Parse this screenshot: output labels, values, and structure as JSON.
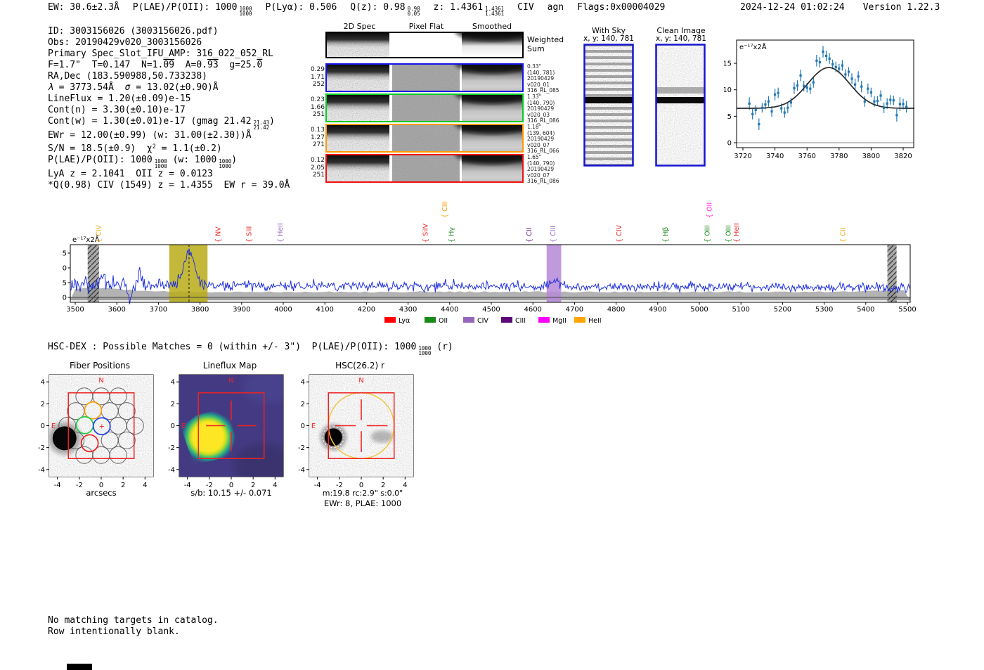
{
  "header": {
    "ew": "EW: 30.6±2.3Å",
    "plae_label": "P(LAE)/P(OII): 1000",
    "plae_sup": "1000",
    "plae_sub": "1000",
    "plya": "P(Lyα): 0.506",
    "qz_label": "Q(z): 0.98",
    "qz_sup": "0.98",
    "qz_sub": "0.05",
    "z_label": "z: 1.4361",
    "z_sup": "1.4361",
    "z_sub": "1.4361",
    "line_id": "CIV",
    "classification": "agn",
    "flags": "Flags:0x00004029",
    "datetime": "2024-12-24 01:02:24",
    "version": "Version 1.22.3"
  },
  "info": {
    "line_id": "ID: 3003156026 (3003156026.pdf)",
    "line_obs": "Obs: 20190429v020_3003156026",
    "line_primary": "Primary Spec_Slot_IFU_AMP: 316_022_052_RL",
    "line_fphot": {
      "s1": "F=1.7\"  T=0.147  N=1.",
      "o1": "09",
      "s2": "  A=0.",
      "o2": "93",
      "s3": "  g=25.",
      "o3": "0"
    },
    "line_radec": "RA,Dec (183.590988,50.733238)",
    "line_lambda": {
      "i1": "λ",
      "s1": " = 3773.54Å  ",
      "i2": "σ",
      "s2": " = 13.02(±0.90)Å"
    },
    "line_lineflux": "LineFlux = 1.20(±0.09)e-15",
    "line_contn": "Cont(n) = 3.30(±0.10)e-17",
    "line_contw": {
      "pre": "Cont(w) = 1.30(±0.01)e-17 (gmag 21.42",
      "sup": "21.43",
      "sub": "21.42",
      "post": ")"
    },
    "line_ewr": "EWr = 12.00(±0.99) (w: 31.00(±2.30))Å",
    "line_sn": {
      "pre": "S/N = 18.5(±0.9)  χ",
      "sup": "2",
      "post": " = 1.1(±0.2)"
    },
    "line_plae": {
      "pre": "P(LAE)/P(OII): 1000",
      "sup1": "1000",
      "sub1": "1000",
      "mid": " (w: 1000",
      "sup2": "1000",
      "sub2": "1000",
      "post": ")"
    },
    "line_z": "LyA z = 2.1041  OII z = 0.0123",
    "line_q": "*Q(0.98) CIV (1549) z = 1.4355  EW r = 39.0Å"
  },
  "spec2d": {
    "col_headers": [
      "2D Spec",
      "Pixel Flat",
      "Smoothed"
    ],
    "weighted_sum": "Weighted\nSum",
    "rows": [
      {
        "color": "#1414e6",
        "left": [
          "0.29",
          "1.71",
          "252"
        ],
        "right": [
          "0.33\"",
          "(140, 781)",
          "20190429",
          "v020_01",
          "316_RL_085"
        ]
      },
      {
        "color": "#00cc22",
        "left": [
          "0.23",
          "1.66",
          "251"
        ],
        "right": [
          "1.33\"",
          "(140, 790)",
          "20190429",
          "v020_03",
          "316_RL_086"
        ]
      },
      {
        "color": "#ff9900",
        "left": [
          "0.13",
          "1.27",
          "271"
        ],
        "right": [
          "1.18\"",
          "(139, 604)",
          "20190429",
          "v020_07",
          "316_RL_066"
        ]
      },
      {
        "color": "#ee1111",
        "left": [
          "0.12",
          "2.05",
          "251"
        ],
        "right": [
          "1.65\"",
          "(140, 790)",
          "20190429",
          "v020_07",
          "316_RL_086"
        ]
      }
    ]
  },
  "sky": {
    "with_sky_title": "With Sky",
    "with_sky_coords": "x, y: 140, 781",
    "clean_title": "Clean Image",
    "clean_coords": "x, y: 140, 781"
  },
  "hsc": {
    "pre": "HSC-DEX : Possible Matches = 0 (within +/- 3\")  P(LAE)/P(OII): 1000",
    "sup": "1000",
    "sub": "1000",
    "post": " (r)"
  },
  "cutouts": {
    "axis_ticks": [
      "-4",
      "-2",
      "0",
      "2",
      "4"
    ],
    "north_label": "N",
    "east_label": "E",
    "plus_marker": "+",
    "panels": [
      {
        "title": "Fiber Positions",
        "xlabel": "arcsecs"
      },
      {
        "title": "Lineflux Map",
        "caption": "s/b: 10.15 +/- 0.071"
      },
      {
        "title": "HSC(26.2) r",
        "caption": "m:19.8 rc:2.9\" s:0.0\"",
        "caption2": "EWr: 8, PLAE: 1000"
      }
    ]
  },
  "footer": {
    "line1": "No matching targets in catalog.",
    "line2": "Row intentionally blank."
  },
  "colors": {
    "marker_blue": "#1f77b4",
    "spectrum_blue": "#2233dd",
    "fit_black": "#2b2b2b",
    "olive_band": "#b9ab16",
    "purple_band": "#b688d8",
    "box_red": "#ee2222",
    "gold": "#f2c744"
  },
  "chart_data": [
    {
      "type": "scatter",
      "id": "line-fit-inset",
      "annotation": "e⁻¹⁷x2Å",
      "xlim": [
        3716,
        3826
      ],
      "ylim": [
        -1,
        19.4
      ],
      "xticks": [
        3720,
        3740,
        3760,
        3780,
        3800,
        3820
      ],
      "yticks": [
        0,
        5,
        10,
        15
      ],
      "x": [
        3724,
        3726,
        3728,
        3730,
        3732,
        3734,
        3736,
        3738,
        3740,
        3742,
        3744,
        3746,
        3748,
        3750,
        3752,
        3754,
        3756,
        3758,
        3760,
        3762,
        3764,
        3766,
        3768,
        3770,
        3772,
        3774,
        3776,
        3778,
        3780,
        3782,
        3784,
        3786,
        3788,
        3790,
        3792,
        3794,
        3796,
        3798,
        3800,
        3802,
        3804,
        3806,
        3808,
        3810,
        3812,
        3814,
        3816,
        3818,
        3820,
        3822
      ],
      "y": [
        7.4,
        5.4,
        6.2,
        3.5,
        6.6,
        7.2,
        7.8,
        5.9,
        9.1,
        9.4,
        6.5,
        5.7,
        6.6,
        7.6,
        10.3,
        10.8,
        12.7,
        10.7,
        10.4,
        10.2,
        11.4,
        15.5,
        15.2,
        17.2,
        16.4,
        15.9,
        14.8,
        14.3,
        14.0,
        14.6,
        12.9,
        13.4,
        12.1,
        11.0,
        12.5,
        10.6,
        7.8,
        10.2,
        9.5,
        7.8,
        7.9,
        8.9,
        6.6,
        7.4,
        8.1,
        8.0,
        5.2,
        7.3,
        7.3,
        6.8
      ],
      "yerr": [
        1.2,
        1.0,
        0.9,
        1.1,
        0.9,
        0.9,
        1.0,
        1.0,
        1.1,
        1.0,
        0.9,
        1.0,
        1.0,
        0.9,
        1.1,
        1.0,
        1.1,
        1.0,
        0.9,
        1.0,
        1.0,
        1.1,
        1.0,
        1.1,
        1.0,
        1.0,
        0.9,
        1.0,
        0.9,
        1.0,
        1.0,
        0.9,
        1.0,
        1.1,
        1.0,
        1.1,
        1.0,
        1.0,
        0.9,
        1.0,
        0.9,
        1.0,
        1.0,
        1.0,
        0.9,
        0.9,
        1.2,
        1.3,
        1.0,
        1.1
      ],
      "fit": {
        "shape": "gaussian",
        "mu": 3773.54,
        "sigma": 13.02,
        "peak": 14.2,
        "baseline": 6.5
      },
      "point_color": "#1f77b4",
      "fit_color": "#2b2b2b"
    },
    {
      "type": "line",
      "id": "full-spectrum",
      "annotation": "e⁻¹⁷x2Å",
      "xlim": [
        3488,
        5508
      ],
      "ylim": [
        -2.7,
        17.9
      ],
      "xticks": [
        3500,
        3600,
        3700,
        3800,
        3900,
        4000,
        4100,
        4200,
        4300,
        4400,
        4500,
        4600,
        4700,
        4800,
        4900,
        5000,
        5100,
        5200,
        5300,
        5400,
        5500
      ],
      "yticks": [
        0,
        5,
        10,
        15
      ],
      "line_color": "#2233dd",
      "emission_peak": {
        "mu": 3773.54,
        "sigma": 13.02,
        "amplitude": 11.2
      },
      "secondary_peak": {
        "mu": 4649,
        "sigma": 12,
        "amplitude": 1.8
      },
      "continuum": {
        "start": 4.35,
        "end": 3.25
      },
      "noise_sigma_blue_end": 1.45,
      "noise_sigma_red_end": 0.78,
      "error_band_level": 1.9,
      "highlight_bands": [
        {
          "style": "hatched",
          "x0": 3530,
          "x1": 3557
        },
        {
          "style": "solid",
          "color": "#b9ab16",
          "x0": 3726,
          "x1": 3818,
          "marker": 3773.54
        },
        {
          "style": "solid",
          "color": "#b688d8",
          "x0": 4633,
          "x1": 4668
        },
        {
          "style": "hatched",
          "x0": 5452,
          "x1": 5474
        }
      ],
      "line_labels": [
        {
          "label": "CIV",
          "wave": 3556,
          "row": 1,
          "color": "#f5a40a"
        },
        {
          "label": "NV",
          "wave": 3843,
          "row": 1,
          "color": "#e82222"
        },
        {
          "label": "SiII",
          "wave": 3917,
          "row": 1,
          "color": "#e82222"
        },
        {
          "label": "HeII",
          "wave": 3992,
          "row": 1,
          "color": "#9467bd"
        },
        {
          "label": "SiIV",
          "wave": 4341,
          "row": 1,
          "color": "#e82222"
        },
        {
          "label": "CIII",
          "wave": 4388,
          "row": 2,
          "color": "#f5a40a"
        },
        {
          "label": "Hγ",
          "wave": 4404,
          "row": 1,
          "color": "#1e8b1e"
        },
        {
          "label": "CII",
          "wave": 4590,
          "row": 1,
          "color": "#6a0d8a"
        },
        {
          "label": "CIII",
          "wave": 4648,
          "row": 1,
          "color": "#9467bd"
        },
        {
          "label": "CIV",
          "wave": 4807,
          "row": 1,
          "color": "#e82222"
        },
        {
          "label": "Hβ",
          "wave": 4918,
          "row": 1,
          "color": "#1e8b1e"
        },
        {
          "label": "OIII",
          "wave": 5019,
          "row": 1,
          "color": "#1e8b1e"
        },
        {
          "label": "OII",
          "wave": 5024,
          "row": 2,
          "color": "#ff22dd"
        },
        {
          "label": "OIII",
          "wave": 5069,
          "row": 1,
          "color": "#1e8b1e"
        },
        {
          "label": "HeII",
          "wave": 5089,
          "row": 1,
          "color": "#e82222"
        },
        {
          "label": "CII",
          "wave": 5345,
          "row": 1,
          "color": "#f5a40a"
        }
      ],
      "legend": [
        {
          "label": "Lyα",
          "color": "#ff0000"
        },
        {
          "label": "OII",
          "color": "#1a8a1a"
        },
        {
          "label": "CIV",
          "color": "#9467bd"
        },
        {
          "label": "CIII",
          "color": "#5c0a78"
        },
        {
          "label": "MgII",
          "color": "#ff00ff"
        },
        {
          "label": "HeII",
          "color": "#ffa500"
        }
      ]
    }
  ]
}
